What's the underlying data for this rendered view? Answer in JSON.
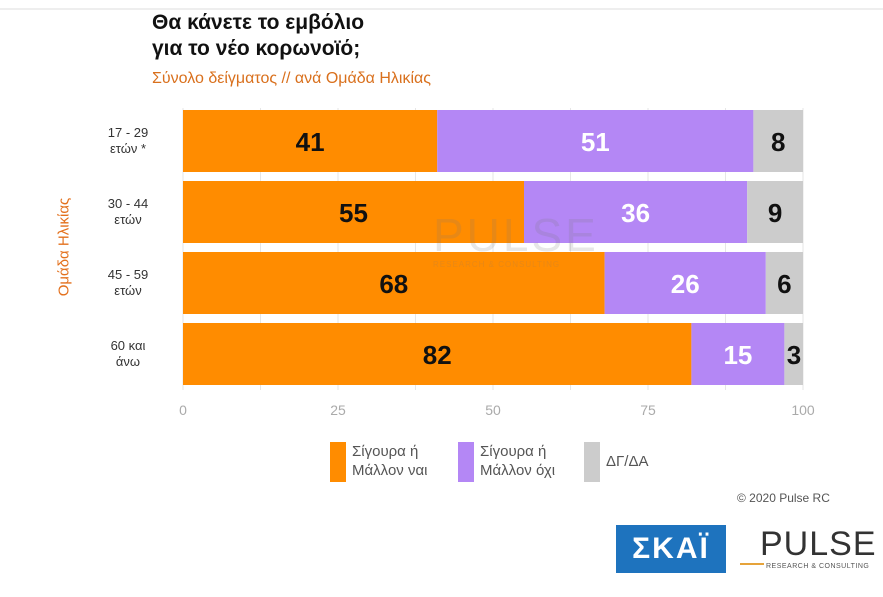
{
  "header": {
    "title_line1": "Θα κάνετε το εμβόλιο",
    "title_line2": "για το νέο κορωνοϊό;",
    "subtitle": "Σύνολο δείγματος // ανά Ομάδα Ηλικίας"
  },
  "chart_data": {
    "type": "bar",
    "orientation": "horizontal",
    "stacked": true,
    "categories": [
      [
        "17 - 29",
        "ετών *"
      ],
      [
        "30 - 44",
        "ετών"
      ],
      [
        "45 - 59",
        "ετών"
      ],
      [
        "60 και",
        "άνω"
      ]
    ],
    "series": [
      {
        "name": "Σίγουρα ή Μάλλον ναι",
        "color": "#ff8c00",
        "values": [
          41,
          55,
          68,
          82
        ]
      },
      {
        "name": "Σίγουρα ή Μάλλον όχι",
        "color": "#b487f5",
        "values": [
          51,
          36,
          26,
          15
        ]
      },
      {
        "name": "ΔΓ/ΔΑ",
        "color": "#cccccc",
        "values": [
          8,
          9,
          6,
          3
        ]
      }
    ],
    "ylabel": "Ομάδα Ηλικίας",
    "xlim": [
      0,
      100
    ],
    "xticks": [
      0,
      25,
      50,
      75,
      100
    ],
    "grid": true,
    "legend_position": "bottom"
  },
  "legend": {
    "items": [
      {
        "line1": "Σίγουρα ή",
        "line2": "Μάλλον ναι",
        "color": "#ff8c00"
      },
      {
        "line1": "Σίγουρα ή",
        "line2": "Μάλλον όχι",
        "color": "#b487f5"
      },
      {
        "line1": "ΔΓ/ΔΑ",
        "line2": "",
        "color": "#cccccc"
      }
    ]
  },
  "footer": {
    "copyright": "© 2020 Pulse RC",
    "logo_skai": "ΣΚΑΪ",
    "logo_pulse": "PULSE",
    "logo_pulse_sub": "RESEARCH & CONSULTING"
  },
  "watermark": {
    "name": "PULSE",
    "sub": "RESEARCH & CONSULTING"
  }
}
